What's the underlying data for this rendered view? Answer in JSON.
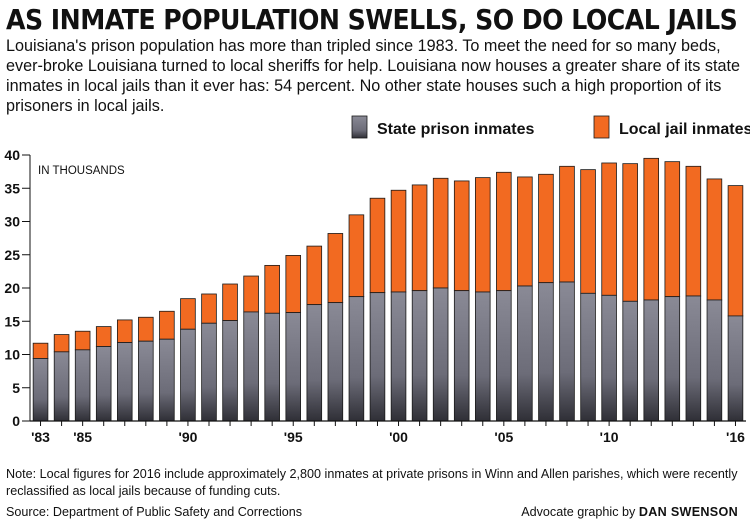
{
  "chart_data": {
    "type": "bar",
    "stacked": true,
    "title": "AS INMATE POPULATION SWELLS, SO DO LOCAL JAILS",
    "subtitle": "Louisiana's prison population has more than tripled since 1983. To meet the need for so many beds, ever-broke Louisiana turned to local sheriffs for help. Louisiana now houses a greater share of its state inmates in local jails than it ever has: 54 percent. No other state houses such a high proportion of its prisoners in local jails.",
    "unit_label": "IN THOUSANDS",
    "categories": [
      "1983",
      "1984",
      "1985",
      "1986",
      "1987",
      "1988",
      "1989",
      "1990",
      "1991",
      "1992",
      "1993",
      "1994",
      "1995",
      "1996",
      "1997",
      "1998",
      "1999",
      "2000",
      "2001",
      "2002",
      "2003",
      "2004",
      "2005",
      "2006",
      "2007",
      "2008",
      "2009",
      "2010",
      "2011",
      "2012",
      "2013",
      "2014",
      "2015",
      "2016"
    ],
    "x_tick_labels": [
      {
        "category": "1983",
        "label": "'83"
      },
      {
        "category": "1985",
        "label": "'85"
      },
      {
        "category": "1990",
        "label": "'90"
      },
      {
        "category": "1995",
        "label": "'95"
      },
      {
        "category": "2000",
        "label": "'00"
      },
      {
        "category": "2005",
        "label": "'05"
      },
      {
        "category": "2010",
        "label": "'10"
      },
      {
        "category": "2016",
        "label": "'16"
      }
    ],
    "series": [
      {
        "name": "State prison inmates",
        "color": "#7f7f8a",
        "values": [
          9.4,
          10.4,
          10.7,
          11.2,
          11.8,
          12.0,
          12.3,
          13.8,
          14.7,
          15.1,
          16.4,
          16.2,
          16.3,
          17.5,
          17.8,
          18.7,
          19.3,
          19.4,
          19.6,
          20.0,
          19.6,
          19.4,
          19.6,
          20.3,
          20.8,
          20.9,
          19.2,
          18.9,
          18.0,
          18.2,
          18.7,
          18.8,
          18.2,
          15.8
        ]
      },
      {
        "name": "Local jail inmates",
        "color": "#f26a21",
        "values": [
          2.3,
          2.6,
          2.8,
          3.0,
          3.4,
          3.6,
          4.2,
          4.6,
          4.4,
          5.5,
          5.4,
          7.2,
          8.6,
          8.8,
          10.4,
          12.3,
          14.2,
          15.3,
          15.9,
          16.5,
          16.5,
          17.2,
          17.8,
          16.4,
          16.3,
          17.4,
          18.6,
          19.9,
          20.7,
          21.3,
          20.3,
          19.5,
          18.2,
          19.6
        ]
      }
    ],
    "ylim": [
      0,
      40
    ],
    "y_ticks": [
      0,
      5,
      10,
      15,
      20,
      25,
      30,
      35,
      40
    ],
    "grid": false,
    "legend_position": "top-right"
  },
  "note": "Note: Local figures for 2016 include approximately 2,800 inmates at private prisons in Winn and Allen parishes, which were recently reclassified as local jails because of funding cuts.",
  "source": "Source: Department of Public Safety and Corrections",
  "credit_prefix": "Advocate graphic by",
  "credit_name": "DAN SWENSON"
}
